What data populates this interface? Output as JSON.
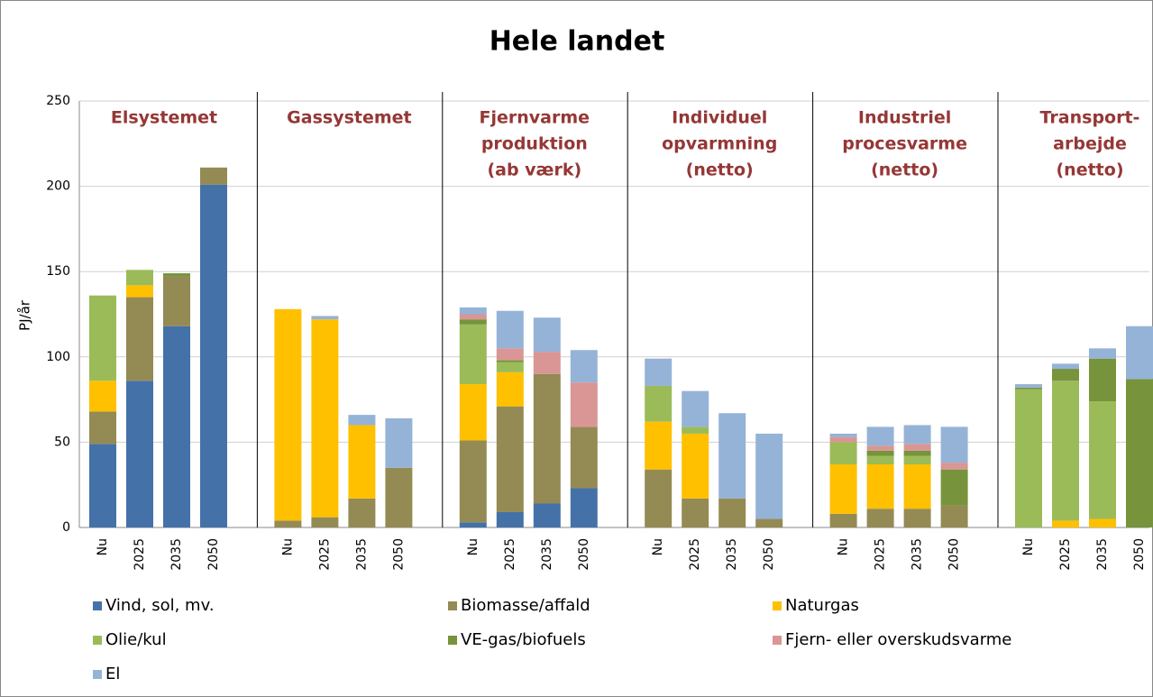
{
  "chart_data": {
    "type": "stacked-bar",
    "title": "Hele landet",
    "ylabel": "PJ/år",
    "groups": [
      [
        "Elsystemet"
      ],
      [
        "Gassystemet"
      ],
      [
        "Fjernvarme",
        "produktion",
        "(ab værk)"
      ],
      [
        "Individuel",
        "opvarmning",
        "(netto)"
      ],
      [
        "Industriel",
        "procesvarme",
        "(netto)"
      ],
      [
        "Transport-",
        "arbejde",
        "(netto)"
      ]
    ],
    "categories": [
      "Nu",
      "2025",
      "2035",
      "2050",
      "Nu",
      "2025",
      "2035",
      "2050",
      "Nu",
      "2025",
      "2035",
      "2050",
      "Nu",
      "2025",
      "2035",
      "2050",
      "Nu",
      "2025",
      "2035",
      "2050",
      "Nu",
      "2025",
      "2035",
      "2050"
    ],
    "series": [
      {
        "name": "Vind, sol, mv.",
        "color": "#4472a8",
        "values": [
          49,
          86,
          118,
          201,
          null,
          null,
          null,
          null,
          3,
          9,
          14,
          23,
          null,
          null,
          null,
          null,
          null,
          null,
          null,
          null,
          null,
          null,
          null,
          null
        ]
      },
      {
        "name": "Biomasse/affald",
        "color": "#948a54",
        "values": [
          19,
          49,
          29,
          10,
          4,
          6,
          17,
          35,
          48,
          62,
          76,
          36,
          34,
          17,
          17,
          5,
          8,
          11,
          11,
          13,
          null,
          null,
          null,
          null
        ]
      },
      {
        "name": "Naturgas",
        "color": "#ffc000",
        "values": [
          18,
          7,
          null,
          null,
          124,
          116,
          43,
          null,
          33,
          20,
          null,
          null,
          28,
          38,
          null,
          null,
          29,
          26,
          26,
          null,
          null,
          4,
          5,
          null
        ]
      },
      {
        "name": "Olie/kul",
        "color": "#9bbb59",
        "values": [
          50,
          9,
          null,
          null,
          null,
          null,
          null,
          null,
          35,
          6,
          null,
          null,
          21,
          4,
          null,
          null,
          13,
          5,
          5,
          null,
          81,
          82,
          69,
          null
        ]
      },
      {
        "name": "VE-gas/biofuels",
        "color": "#77933c",
        "values": [
          null,
          null,
          2,
          null,
          null,
          null,
          null,
          null,
          3,
          1,
          null,
          null,
          null,
          null,
          null,
          null,
          null,
          3,
          3,
          21,
          1,
          7,
          25,
          87
        ]
      },
      {
        "name": "Fjern- eller overskudsvarme",
        "color": "#d99694",
        "values": [
          null,
          null,
          null,
          null,
          null,
          null,
          null,
          null,
          3,
          7,
          13,
          26,
          null,
          null,
          null,
          null,
          3,
          3,
          4,
          4,
          null,
          null,
          null,
          null
        ]
      },
      {
        "name": "El",
        "color": "#95b3d7",
        "values": [
          null,
          null,
          null,
          null,
          null,
          2,
          6,
          29,
          4,
          22,
          20,
          19,
          16,
          21,
          50,
          50,
          2,
          11,
          11,
          21,
          2,
          3,
          6,
          31
        ]
      }
    ],
    "ylim": [
      0,
      250
    ],
    "yticks": [
      0,
      50,
      100,
      150,
      200,
      250
    ],
    "grid": true
  }
}
